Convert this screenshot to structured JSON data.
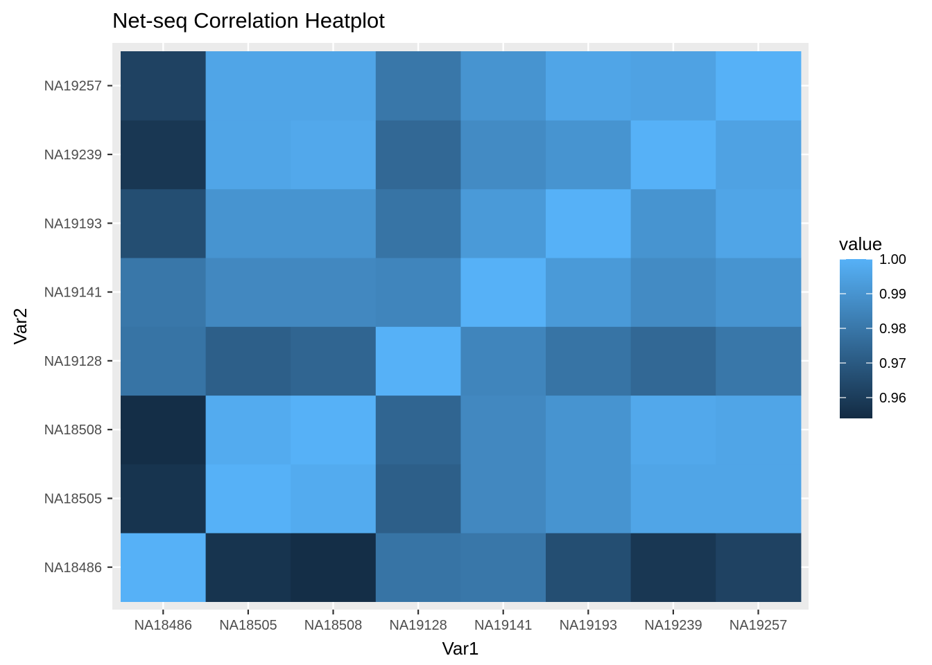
{
  "chart_data": {
    "type": "heatmap",
    "title": "Net-seq Correlation Heatplot",
    "xlabel": "Var1",
    "ylabel": "Var2",
    "x_categories": [
      "NA18486",
      "NA18505",
      "NA18508",
      "NA19128",
      "NA19141",
      "NA19193",
      "NA19239",
      "NA19257"
    ],
    "y_categories": [
      "NA18486",
      "NA18505",
      "NA18508",
      "NA19128",
      "NA19141",
      "NA19193",
      "NA19239",
      "NA19257"
    ],
    "values": [
      [
        1.0,
        0.957,
        0.955,
        0.979,
        0.98,
        0.966,
        0.958,
        0.962
      ],
      [
        0.957,
        1.0,
        0.998,
        0.972,
        0.986,
        0.99,
        0.996,
        0.996
      ],
      [
        0.955,
        0.998,
        1.0,
        0.974,
        0.986,
        0.99,
        0.997,
        0.996
      ],
      [
        0.979,
        0.972,
        0.974,
        1.0,
        0.985,
        0.979,
        0.975,
        0.98
      ],
      [
        0.98,
        0.986,
        0.986,
        0.985,
        1.0,
        0.992,
        0.987,
        0.99
      ],
      [
        0.966,
        0.99,
        0.99,
        0.979,
        0.992,
        1.0,
        0.99,
        0.996
      ],
      [
        0.958,
        0.996,
        0.997,
        0.975,
        0.987,
        0.99,
        1.0,
        0.995
      ],
      [
        0.962,
        0.996,
        0.996,
        0.98,
        0.99,
        0.996,
        0.995,
        1.0
      ]
    ],
    "value_range": [
      0.954,
      1.0
    ],
    "legend": {
      "title": "value",
      "position": "right",
      "ticks": [
        0.96,
        0.97,
        0.98,
        0.99,
        1.0
      ],
      "tick_labels": [
        "0.96",
        "0.97",
        "0.98",
        "0.99",
        "1.00"
      ]
    },
    "colors": {
      "low": "#132B43",
      "high": "#56B1F7",
      "panel_background": "#EBEBEB",
      "grid": "#FFFFFF"
    },
    "grid": true
  }
}
